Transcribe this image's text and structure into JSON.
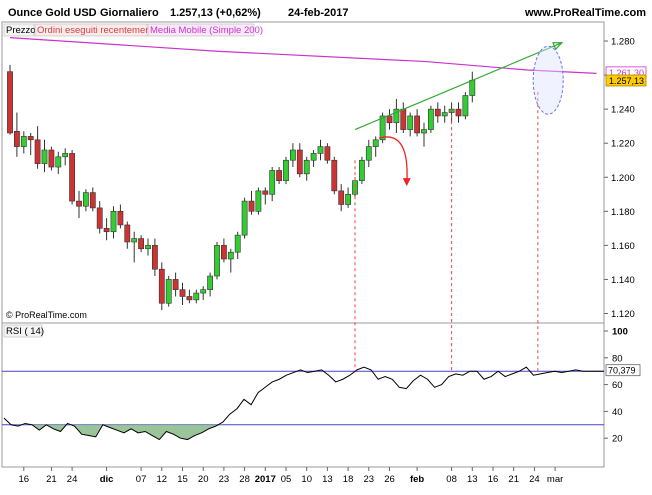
{
  "header": {
    "instrument": "Ounce Gold USD",
    "period": "Giornaliero",
    "quote": "1.257,13 (+0,62%)",
    "date": "24-feb-2017",
    "site": "www.ProRealTime.com"
  },
  "legend": {
    "price": "Prezzo",
    "orders": "Ordini eseguiti recentemente",
    "ma": "Media Mobile (Simple 200)"
  },
  "watermark": "© ProRealTime.com",
  "colors": {
    "up": "#33cc33",
    "down": "#cc3333",
    "ma": "#cc33cc",
    "rsi_line": "#000000",
    "rsi_bands": "#4444cc",
    "rsi_fill": "#88bb88",
    "trend_arrow": "#33aa33",
    "pullback_arrow": "#ee2222",
    "ellipse": "#6677ee",
    "guides": "#ee4444"
  },
  "chart_data": [
    {
      "type": "candlestick",
      "title": "",
      "ylim": [
        1115,
        1290
      ],
      "y_ticks": [
        1120,
        1140,
        1160,
        1180,
        1200,
        1220,
        1240,
        1260,
        1280
      ],
      "y_tick_labels": [
        "1.120",
        "1.140",
        "1.160",
        "1.180",
        "1.200",
        "1.220",
        "1.240",
        "1.260",
        "1.280"
      ],
      "x_labels": [
        "16",
        "21",
        "24",
        "dic",
        "07",
        "12",
        "15",
        "20",
        "23",
        "28",
        "2017",
        "05",
        "10",
        "13",
        "18",
        "23",
        "26",
        "feb",
        "08",
        "13",
        "16",
        "21",
        "24",
        "mar"
      ],
      "x_label_index": [
        2,
        6,
        9,
        14,
        19,
        22,
        25,
        28,
        31,
        34,
        37,
        40,
        43,
        46,
        49,
        52,
        55,
        59,
        64,
        67,
        70,
        73,
        76,
        79
      ],
      "ohlc": [
        [
          1262,
          1266,
          1225,
          1226
        ],
        [
          1227,
          1238,
          1212,
          1218
        ],
        [
          1218,
          1227,
          1214,
          1224
        ],
        [
          1224,
          1226,
          1213,
          1222
        ],
        [
          1222,
          1230,
          1205,
          1208
        ],
        [
          1208,
          1222,
          1203,
          1216
        ],
        [
          1216,
          1218,
          1204,
          1206
        ],
        [
          1206,
          1215,
          1202,
          1212
        ],
        [
          1212,
          1217,
          1207,
          1214
        ],
        [
          1214,
          1216,
          1184,
          1186
        ],
        [
          1186,
          1192,
          1176,
          1183
        ],
        [
          1183,
          1193,
          1180,
          1191
        ],
        [
          1191,
          1194,
          1180,
          1182
        ],
        [
          1182,
          1186,
          1167,
          1170
        ],
        [
          1170,
          1176,
          1163,
          1168
        ],
        [
          1168,
          1183,
          1164,
          1180
        ],
        [
          1180,
          1184,
          1170,
          1172
        ],
        [
          1172,
          1174,
          1158,
          1162
        ],
        [
          1162,
          1168,
          1150,
          1164
        ],
        [
          1164,
          1166,
          1156,
          1158
        ],
        [
          1158,
          1164,
          1154,
          1160
        ],
        [
          1160,
          1164,
          1142,
          1146
        ],
        [
          1146,
          1150,
          1122,
          1126
        ],
        [
          1126,
          1142,
          1124,
          1140
        ],
        [
          1140,
          1144,
          1130,
          1134
        ],
        [
          1134,
          1138,
          1125,
          1130
        ],
        [
          1130,
          1134,
          1126,
          1128
        ],
        [
          1128,
          1134,
          1126,
          1132
        ],
        [
          1132,
          1136,
          1128,
          1134
        ],
        [
          1134,
          1144,
          1130,
          1142
        ],
        [
          1142,
          1162,
          1140,
          1160
        ],
        [
          1160,
          1164,
          1150,
          1152
        ],
        [
          1152,
          1158,
          1144,
          1156
        ],
        [
          1156,
          1168,
          1152,
          1166
        ],
        [
          1166,
          1188,
          1164,
          1186
        ],
        [
          1186,
          1192,
          1178,
          1180
        ],
        [
          1180,
          1194,
          1178,
          1192
        ],
        [
          1192,
          1194,
          1184,
          1190
        ],
        [
          1190,
          1206,
          1186,
          1204
        ],
        [
          1204,
          1206,
          1196,
          1198
        ],
        [
          1198,
          1212,
          1196,
          1210
        ],
        [
          1210,
          1220,
          1206,
          1216
        ],
        [
          1216,
          1220,
          1200,
          1202
        ],
        [
          1202,
          1212,
          1198,
          1210
        ],
        [
          1210,
          1216,
          1206,
          1214
        ],
        [
          1214,
          1222,
          1210,
          1218
        ],
        [
          1218,
          1220,
          1208,
          1210
        ],
        [
          1210,
          1212,
          1190,
          1192
        ],
        [
          1192,
          1196,
          1180,
          1184
        ],
        [
          1184,
          1194,
          1182,
          1190
        ],
        [
          1190,
          1200,
          1188,
          1198
        ],
        [
          1198,
          1212,
          1196,
          1210
        ],
        [
          1210,
          1222,
          1206,
          1218
        ],
        [
          1218,
          1224,
          1212,
          1222
        ],
        [
          1222,
          1238,
          1220,
          1236
        ],
        [
          1236,
          1240,
          1228,
          1232
        ],
        [
          1232,
          1246,
          1226,
          1240
        ],
        [
          1240,
          1244,
          1226,
          1228
        ],
        [
          1228,
          1238,
          1224,
          1236
        ],
        [
          1236,
          1240,
          1224,
          1226
        ],
        [
          1226,
          1232,
          1218,
          1228
        ],
        [
          1228,
          1242,
          1226,
          1240
        ],
        [
          1240,
          1244,
          1232,
          1236
        ],
        [
          1236,
          1242,
          1232,
          1238
        ],
        [
          1238,
          1244,
          1232,
          1240
        ],
        [
          1240,
          1244,
          1232,
          1236
        ],
        [
          1236,
          1250,
          1234,
          1248
        ],
        [
          1248,
          1262,
          1244,
          1257
        ]
      ],
      "ma_200": [
        [
          0,
          1282
        ],
        [
          30,
          1274
        ],
        [
          60,
          1268
        ],
        [
          75,
          1263
        ],
        [
          85,
          1261
        ]
      ],
      "ma_value_label": "1.261,30",
      "last_price_label": "1.257,13"
    },
    {
      "type": "line",
      "title": "",
      "series": [
        {
          "name": "RSI ( 14)"
        }
      ],
      "ylim": [
        0,
        100
      ],
      "y_ticks": [
        20,
        40,
        60,
        80,
        100
      ],
      "y_tick_labels": [
        "20",
        "40",
        "60",
        "80",
        "100"
      ],
      "bands": [
        30,
        70
      ],
      "last_value_label": "70,379",
      "values": [
        35,
        30,
        29,
        31,
        30,
        26,
        30,
        27,
        25,
        31,
        29,
        23,
        22,
        21,
        30,
        28,
        26,
        24,
        27,
        24,
        25,
        22,
        19,
        25,
        23,
        20,
        19,
        22,
        24,
        27,
        29,
        32,
        38,
        42,
        49,
        45,
        54,
        58,
        62,
        64,
        67,
        69,
        71,
        69,
        70,
        71,
        67,
        62,
        64,
        67,
        71,
        73,
        71,
        64,
        66,
        64,
        58,
        57,
        63,
        67,
        64,
        58,
        60,
        66,
        68,
        67,
        70,
        70,
        64,
        66,
        70,
        66,
        68,
        70,
        73,
        67,
        68,
        69,
        70,
        69,
        70,
        71,
        70,
        70,
        70,
        70
      ]
    }
  ]
}
